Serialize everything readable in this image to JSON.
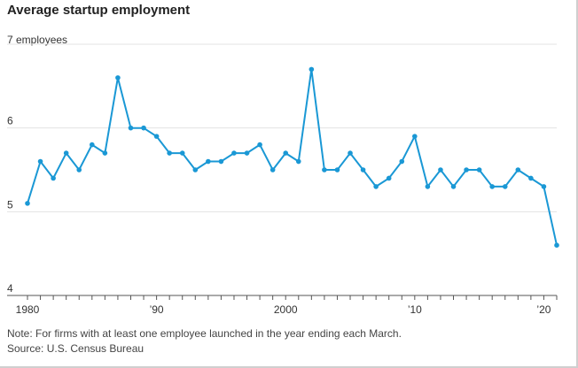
{
  "chart_data": {
    "type": "line",
    "title": "Average startup employment",
    "ylabel": "",
    "xlabel": "",
    "y_unit_label": "7 employees",
    "ylim": [
      4,
      7
    ],
    "xlim": [
      1980,
      2021
    ],
    "y_ticks": [
      {
        "value": 7,
        "label": ""
      },
      {
        "value": 6,
        "label": "6"
      },
      {
        "value": 5,
        "label": "5"
      },
      {
        "value": 4,
        "label": "4"
      }
    ],
    "x_ticks": [
      {
        "value": 1980,
        "label": "1980"
      },
      {
        "value": 1990,
        "label": "’90"
      },
      {
        "value": 2000,
        "label": "2000"
      },
      {
        "value": 2010,
        "label": "’10"
      },
      {
        "value": 2020,
        "label": "’20"
      }
    ],
    "grid": true,
    "color": "#1a98d5",
    "series": [
      {
        "x": [
          1980,
          1981,
          1982,
          1983,
          1984,
          1985,
          1986,
          1987,
          1988,
          1989,
          1990,
          1991,
          1992,
          1993,
          1994,
          1995,
          1996,
          1997,
          1998,
          1999,
          2000,
          2001,
          2002,
          2003,
          2004,
          2005,
          2006,
          2007,
          2008,
          2009,
          2010,
          2011,
          2012,
          2013,
          2014,
          2015,
          2016,
          2017,
          2018,
          2019,
          2020,
          2021
        ],
        "y": [
          5.1,
          5.6,
          5.4,
          5.7,
          5.5,
          5.8,
          5.7,
          6.6,
          6.0,
          6.0,
          5.9,
          5.7,
          5.7,
          5.5,
          5.6,
          5.6,
          5.7,
          5.7,
          5.8,
          5.5,
          5.7,
          5.6,
          6.7,
          5.5,
          5.5,
          5.7,
          5.5,
          5.3,
          5.4,
          5.6,
          5.9,
          5.3,
          5.5,
          5.3,
          5.5,
          5.5,
          5.3,
          5.3,
          5.5,
          5.4,
          5.3,
          4.6
        ]
      }
    ],
    "note": "Note: For firms with at least one employee launched in the year ending each March.",
    "source": "Source: U.S. Census Bureau"
  }
}
